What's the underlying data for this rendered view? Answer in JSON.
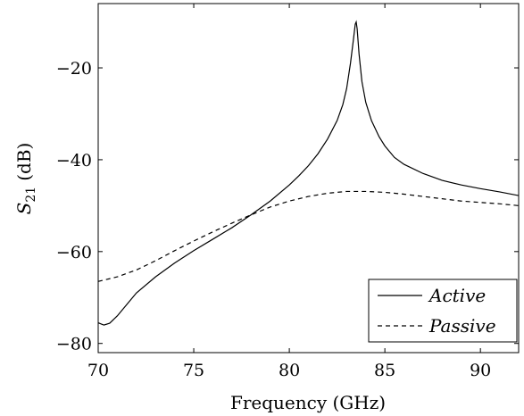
{
  "chart_data": {
    "type": "line",
    "title": "",
    "xlabel": "Frequency (GHz)",
    "ylabel_main": "S",
    "ylabel_sub": "21",
    "ylabel_unit": "(dB)",
    "xlim": [
      70,
      92
    ],
    "ylim": [
      -82,
      -6
    ],
    "xticks": [
      70,
      75,
      80,
      85,
      90
    ],
    "yticks": [
      -80,
      -60,
      -40,
      -20
    ],
    "grid": false,
    "legend_position": "bottom-right",
    "series": [
      {
        "name": "Active",
        "style": "solid",
        "color": "#000000",
        "x": [
          70.0,
          70.3,
          70.6,
          71.0,
          71.5,
          72.0,
          73.0,
          74.0,
          75.0,
          76.0,
          77.0,
          78.0,
          79.0,
          80.0,
          80.5,
          81.0,
          81.5,
          82.0,
          82.5,
          82.8,
          83.0,
          83.2,
          83.35,
          83.45,
          83.5,
          83.55,
          83.65,
          83.8,
          84.0,
          84.3,
          84.7,
          85.0,
          85.5,
          86.0,
          87.0,
          88.0,
          89.0,
          90.0,
          91.0,
          92.0
        ],
        "y": [
          -75.5,
          -76.0,
          -75.6,
          -74.0,
          -71.5,
          -69.0,
          -65.5,
          -62.5,
          -59.8,
          -57.3,
          -54.8,
          -52.0,
          -49.0,
          -45.5,
          -43.5,
          -41.3,
          -38.7,
          -35.5,
          -31.5,
          -28.0,
          -24.5,
          -19.0,
          -14.0,
          -10.5,
          -10.0,
          -11.5,
          -17.0,
          -23.0,
          -27.5,
          -31.5,
          -35.0,
          -37.0,
          -39.5,
          -41.0,
          -43.0,
          -44.5,
          -45.5,
          -46.3,
          -47.0,
          -47.8
        ]
      },
      {
        "name": "Passive",
        "style": "dashed",
        "color": "#000000",
        "x": [
          70.0,
          71.0,
          72.0,
          73.0,
          74.0,
          75.0,
          76.0,
          77.0,
          78.0,
          79.0,
          80.0,
          81.0,
          82.0,
          83.0,
          84.0,
          85.0,
          86.0,
          87.0,
          88.0,
          89.0,
          90.0,
          91.0,
          92.0
        ],
        "y": [
          -66.5,
          -65.5,
          -64.0,
          -62.0,
          -59.8,
          -57.7,
          -55.7,
          -53.8,
          -52.0,
          -50.3,
          -49.0,
          -48.0,
          -47.3,
          -46.9,
          -46.9,
          -47.1,
          -47.5,
          -48.0,
          -48.5,
          -49.0,
          -49.3,
          -49.6,
          -50.0
        ]
      }
    ]
  }
}
